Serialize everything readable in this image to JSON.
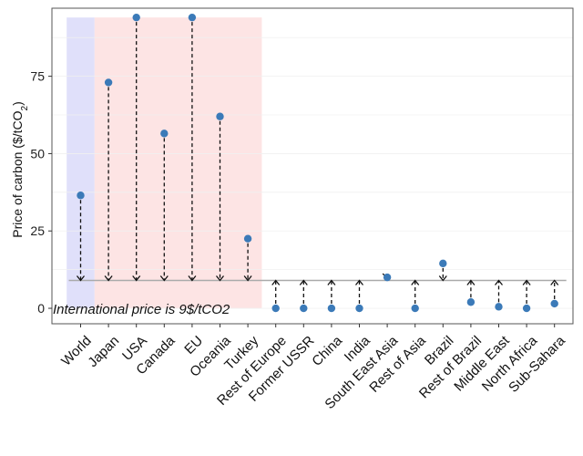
{
  "chart_data": {
    "type": "scatter",
    "ylabel_main": "Price of carbon ($/tCO",
    "ylabel_sub": "2",
    "ylabel_end": ")",
    "annotation": "International price is 9$/tCO2",
    "international_price": 9,
    "ylim": [
      -5,
      97
    ],
    "y_ticks": [
      0,
      25,
      50,
      75
    ],
    "categories": [
      "World",
      "Japan",
      "USA",
      "Canada",
      "EU",
      "Oceania",
      "Turkey",
      "Rest of Europe",
      "Former USSR",
      "China",
      "India",
      "South East Asia",
      "Rest of Asia",
      "Brazil",
      "Rest of Brazil",
      "Middle East",
      "North Africa",
      "Sub-Sahara"
    ],
    "values": [
      36.5,
      73,
      94,
      56.5,
      94,
      62,
      22.5,
      0,
      0,
      0,
      0,
      10,
      0,
      14.5,
      2,
      0.5,
      0,
      1.5
    ],
    "shaded_regions": [
      {
        "from_index": 0,
        "to_index": 0,
        "color": "#e0e0fa"
      },
      {
        "from_index": 1,
        "to_index": 6,
        "color": "#fde4e4"
      }
    ],
    "grid": true,
    "colors": {
      "point": "#3b7ab8",
      "arrow": "#111111",
      "hline": "#aaaaaa",
      "panel_border": "#555555"
    }
  }
}
